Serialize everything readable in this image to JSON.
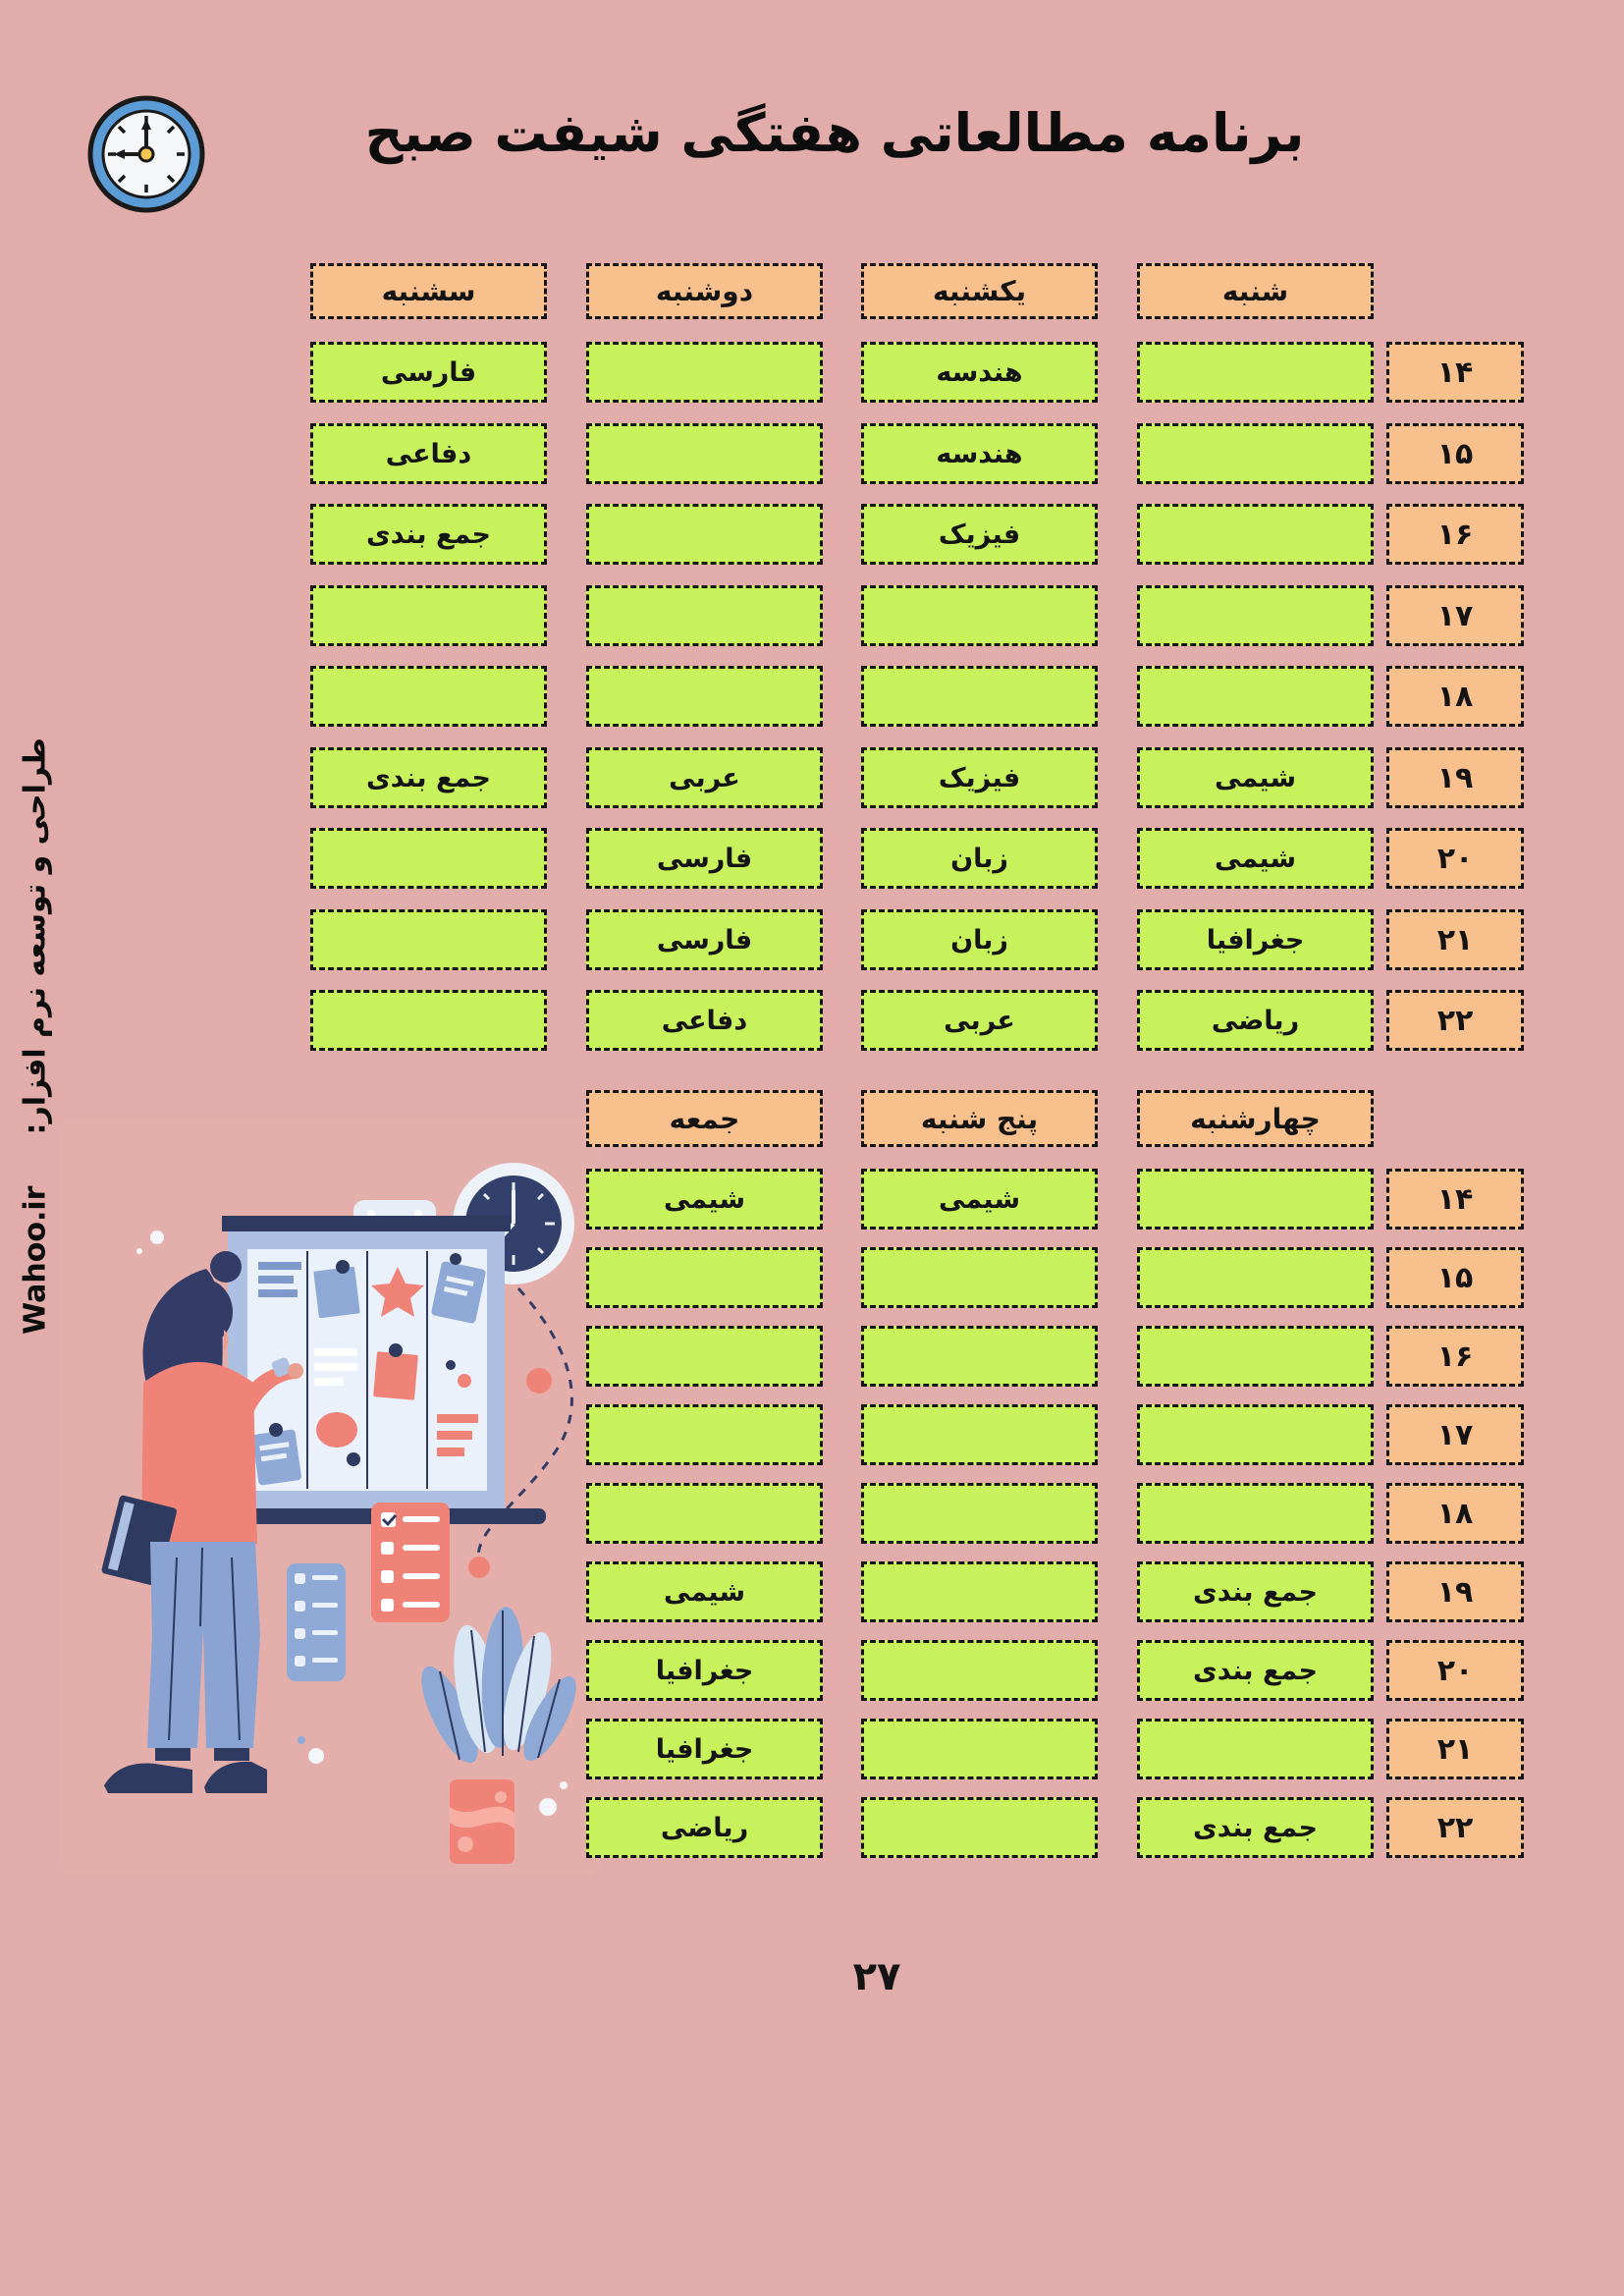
{
  "page": {
    "title": "برنامه مطالعاتی هفتگی شیفت صبح",
    "page_number": "۲۷",
    "credit_text": "طراحی و توسعه نرم افزار:",
    "credit_site": "Wahoo.ir"
  },
  "colors": {
    "background": "#E1ACA9",
    "cell_green": "#C8F25B",
    "header_orange": "#F8C08D",
    "border_black": "#141414",
    "illustration_navy": "#2E3A5F",
    "illustration_coral": "#EF8377",
    "illustration_blue": "#8FA9D6"
  },
  "icons": [
    "clock-icon",
    "wall-clock-icon",
    "planning-board",
    "checklist-card",
    "plant"
  ],
  "schedule_top": {
    "days": [
      "شنبه",
      "یکشنبه",
      "دوشنبه",
      "سشنبه"
    ],
    "rows": [
      {
        "time": "۱۴",
        "cells": [
          "",
          "هندسه",
          "",
          "فارسی"
        ]
      },
      {
        "time": "۱۵",
        "cells": [
          "",
          "هندسه",
          "",
          "دفاعی"
        ]
      },
      {
        "time": "۱۶",
        "cells": [
          "",
          "فیزیک",
          "",
          "جمع بندی"
        ]
      },
      {
        "time": "۱۷",
        "cells": [
          "",
          "",
          "",
          ""
        ]
      },
      {
        "time": "۱۸",
        "cells": [
          "",
          "",
          "",
          ""
        ]
      },
      {
        "time": "۱۹",
        "cells": [
          "شیمی",
          "فیزیک",
          "عربی",
          "جمع بندی"
        ]
      },
      {
        "time": "۲۰",
        "cells": [
          "شیمی",
          "زبان",
          "فارسی",
          ""
        ]
      },
      {
        "time": "۲۱",
        "cells": [
          "جغرافیا",
          "زبان",
          "فارسی",
          ""
        ]
      },
      {
        "time": "۲۲",
        "cells": [
          "ریاضی",
          "عربی",
          "دفاعی",
          ""
        ]
      }
    ]
  },
  "schedule_bottom": {
    "days": [
      "چهارشنبه",
      "پنج شنبه",
      "جمعه"
    ],
    "rows": [
      {
        "time": "۱۴",
        "cells": [
          "",
          "شیمی",
          "شیمی"
        ]
      },
      {
        "time": "۱۵",
        "cells": [
          "",
          "",
          ""
        ]
      },
      {
        "time": "۱۶",
        "cells": [
          "",
          "",
          ""
        ]
      },
      {
        "time": "۱۷",
        "cells": [
          "",
          "",
          ""
        ]
      },
      {
        "time": "۱۸",
        "cells": [
          "",
          "",
          ""
        ]
      },
      {
        "time": "۱۹",
        "cells": [
          "جمع بندی",
          "",
          "شیمی"
        ]
      },
      {
        "time": "۲۰",
        "cells": [
          "جمع بندی",
          "",
          "جغرافیا"
        ]
      },
      {
        "time": "۲۱",
        "cells": [
          "",
          "",
          "جغرافیا"
        ]
      },
      {
        "time": "۲۲",
        "cells": [
          "جمع بندی",
          "",
          "ریاضی"
        ]
      }
    ]
  }
}
